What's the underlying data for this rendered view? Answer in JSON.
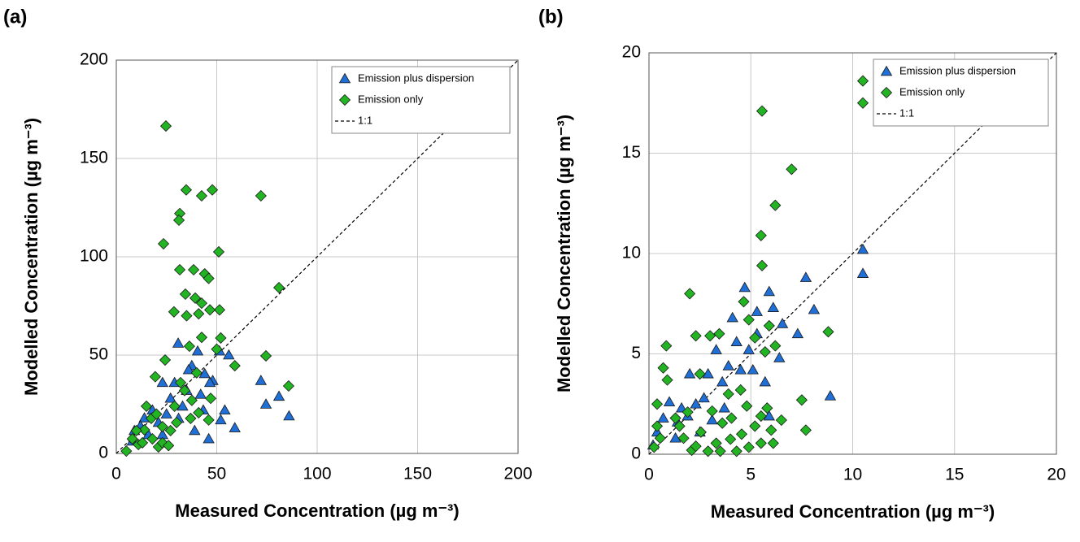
{
  "chart_data": [
    {
      "type": "scatter",
      "label": "(a)",
      "xlabel": "Measured Concentration (µg m⁻³)",
      "ylabel": "Modelled Concentration (µg m⁻³)",
      "xlim": [
        0,
        200
      ],
      "ylim": [
        0,
        200
      ],
      "xticks": [
        0,
        50,
        100,
        150,
        200
      ],
      "yticks": [
        0,
        50,
        100,
        150,
        200
      ],
      "grid": true,
      "legend": "upper right",
      "diagonal": {
        "name": "1:1",
        "color": "#000000"
      },
      "series": [
        {
          "name": "Emission plus dispersion",
          "color": "#1f6fd6",
          "marker": "triangle",
          "x": [
            51.4,
            56,
            72,
            74.5,
            81,
            86,
            59,
            54,
            52,
            46,
            42,
            43.3,
            37.6,
            30.8,
            48,
            35,
            39,
            33,
            27,
            23,
            25,
            18,
            14,
            12,
            9,
            16,
            21,
            29,
            40.5,
            36,
            44,
            8,
            23,
            31,
            46.6
          ],
          "values": [
            52,
            50,
            37,
            25,
            29,
            19,
            13,
            22,
            17,
            7.4,
            30,
            22,
            44.6,
            56,
            37,
            32,
            11.6,
            24,
            28,
            36,
            20,
            22,
            18,
            14,
            11.6,
            9.5,
            15.7,
            36,
            52,
            42.5,
            40.5,
            6.2,
            9.5,
            17.8,
            36
          ]
        },
        {
          "name": "Emission only",
          "color": "#22b422",
          "marker": "diamond",
          "x": [
            24.7,
            34.8,
            47.8,
            42.5,
            72,
            31.6,
            31.2,
            23.5,
            51,
            31.6,
            38.5,
            44,
            46,
            81,
            42.5,
            39.3,
            41,
            34.4,
            28.7,
            51.4,
            46.6,
            35,
            42.5,
            52,
            36.4,
            50,
            59,
            74.5,
            85.8,
            24.3,
            19.4,
            40,
            47,
            46,
            37.6,
            32,
            5,
            8,
            11,
            14,
            15,
            18,
            21,
            23,
            26,
            17.4,
            23,
            27,
            30,
            20,
            13,
            10,
            29,
            34,
            41,
            37
          ],
          "values": [
            166.5,
            134,
            134,
            131,
            131,
            122,
            118.6,
            106.6,
            102.5,
            93.4,
            93.4,
            91.3,
            89,
            84.3,
            76.4,
            79,
            71,
            81,
            72,
            73,
            73,
            70,
            59,
            58.7,
            54.5,
            53,
            44.6,
            49.6,
            34.3,
            47.5,
            39,
            41,
            28,
            17,
            27,
            36,
            1.2,
            7.4,
            4.5,
            12,
            24,
            7.4,
            3.3,
            5.4,
            4,
            17.8,
            13.6,
            11.6,
            15.7,
            20,
            5.4,
            11.6,
            24,
            32,
            20.7,
            17.8
          ]
        }
      ]
    },
    {
      "type": "scatter",
      "label": "(b)",
      "xlabel": "Measured Concentration (µg m⁻³)",
      "ylabel": "Modelled Concentration (µg m⁻³)",
      "xlim": [
        0,
        20
      ],
      "ylim": [
        0,
        20
      ],
      "xticks": [
        0,
        5,
        10,
        15,
        20
      ],
      "yticks": [
        0,
        5,
        10,
        15,
        20
      ],
      "grid": true,
      "legend": "upper right",
      "diagonal": {
        "name": "1:1",
        "color": "#000000"
      },
      "series": [
        {
          "name": "Emission plus dispersion",
          "color": "#1f6fd6",
          "marker": "triangle",
          "x": [
            10.5,
            10.5,
            7.7,
            8.1,
            7.3,
            8.9,
            6.55,
            5.9,
            4.7,
            6.1,
            5.3,
            4.9,
            4.3,
            4.1,
            3.9,
            3.3,
            3.6,
            2.9,
            2.7,
            2.3,
            2,
            1.9,
            1.6,
            1.4,
            1,
            0.7,
            0.4,
            0.2,
            1.3,
            2.5,
            3.1,
            3.7,
            4.5,
            5.1,
            5.7,
            5.9,
            5.3,
            6.4
          ],
          "values": [
            10.2,
            9,
            8.8,
            7.2,
            6,
            2.9,
            6.5,
            8.1,
            8.3,
            7.3,
            6,
            5.2,
            5.6,
            6.8,
            4.4,
            5.2,
            3.6,
            4,
            2.8,
            2.5,
            4,
            1.9,
            2.3,
            1.6,
            2.6,
            1.8,
            1.1,
            0.45,
            0.8,
            1.1,
            1.7,
            2.3,
            4.2,
            4.2,
            3.6,
            1.9,
            7.1,
            4.8
          ]
        },
        {
          "name": "Emission only",
          "color": "#22b422",
          "marker": "diamond",
          "x": [
            10.5,
            10.5,
            5.55,
            7,
            6.2,
            5.5,
            5.55,
            8.8,
            2,
            6.2,
            7.5,
            7.7,
            5.8,
            5.5,
            6,
            6.5,
            0.85,
            0.7,
            0.9,
            0.4,
            0.25,
            0.55,
            0.4,
            1.7,
            2.1,
            2.3,
            2.55,
            2.9,
            3.3,
            3.6,
            4,
            4.3,
            4.55,
            4.9,
            5.2,
            4.8,
            4.05,
            3.1,
            2.5,
            2.3,
            3,
            3.45,
            4.65,
            4.9,
            5.2,
            5.9,
            5.7,
            1.3,
            1.5,
            1.9,
            3.9,
            4.5,
            3.5,
            5.5,
            6.1
          ],
          "values": [
            18.6,
            17.5,
            17.1,
            14.2,
            12.4,
            10.9,
            9.4,
            6.1,
            8,
            5.4,
            2.7,
            1.2,
            2.3,
            1.9,
            1.2,
            1.7,
            5.4,
            4.3,
            3.7,
            1.4,
            0.35,
            0.8,
            2.5,
            0.8,
            0.2,
            0.4,
            1.1,
            0.15,
            0.55,
            1.55,
            0.75,
            0.15,
            1,
            0.35,
            1.4,
            2.4,
            1.8,
            2.15,
            4,
            5.9,
            5.9,
            6,
            7.6,
            6.7,
            5.8,
            6.4,
            5.1,
            1.8,
            1.4,
            2.1,
            3,
            3.2,
            0.15,
            0.55,
            0.55
          ]
        }
      ]
    }
  ]
}
